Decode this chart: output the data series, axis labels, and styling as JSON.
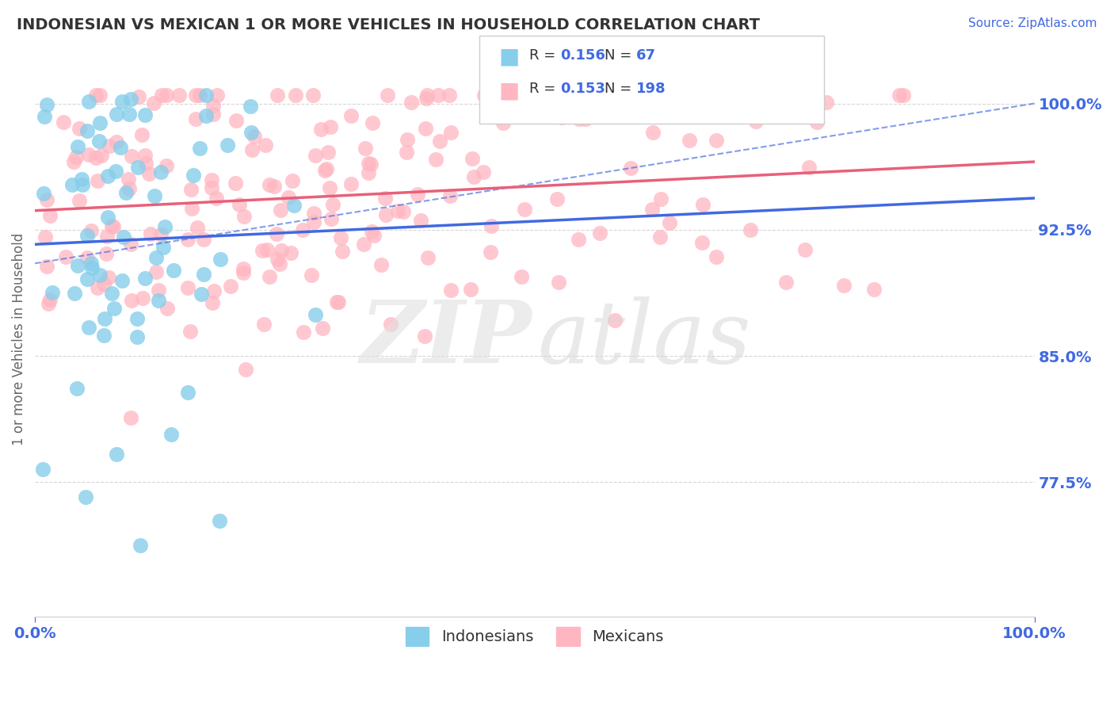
{
  "title": "INDONESIAN VS MEXICAN 1 OR MORE VEHICLES IN HOUSEHOLD CORRELATION CHART",
  "source": "Source: ZipAtlas.com",
  "ylabel": "1 or more Vehicles in Household",
  "xlim": [
    0,
    1
  ],
  "ylim": [
    0.695,
    1.025
  ],
  "yticks": [
    0.775,
    0.85,
    0.925,
    1.0
  ],
  "ytick_labels": [
    "77.5%",
    "85.0%",
    "92.5%",
    "100.0%"
  ],
  "xtick_labels": [
    "0.0%",
    "100.0%"
  ],
  "legend_r_indo": "0.156",
  "legend_n_indo": "67",
  "legend_r_mex": "0.153",
  "legend_n_mex": "198",
  "legend_label_indo": "Indonesians",
  "legend_label_mex": "Mexicans",
  "color_indo": "#87CEEB",
  "color_mex": "#FFB6C1",
  "color_trend_indo": "#4169E1",
  "color_trend_mex": "#E8607A",
  "color_axis_labels": "#4169E1",
  "color_title": "#333333",
  "background_color": "#FFFFFF"
}
